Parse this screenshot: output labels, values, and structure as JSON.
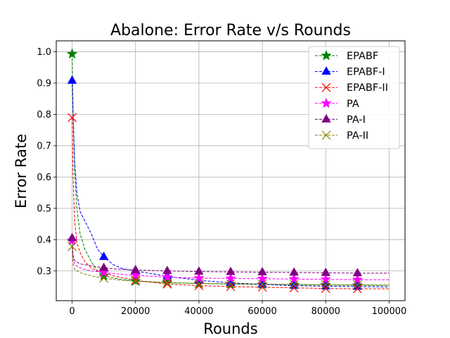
{
  "chart_data": {
    "type": "line",
    "title": "Abalone: Error Rate v/s Rounds",
    "xlabel": "Rounds",
    "ylabel": "Error Rate",
    "xlim": [
      -5000,
      105000
    ],
    "ylim": [
      0.205,
      1.035
    ],
    "xticks": [
      0,
      20000,
      40000,
      60000,
      80000,
      100000
    ],
    "xtick_labels": [
      "0",
      "20000",
      "40000",
      "60000",
      "80000",
      "100000"
    ],
    "yticks": [
      0.3,
      0.4,
      0.5,
      0.6,
      0.7,
      0.8,
      0.9,
      1.0
    ],
    "ytick_labels": [
      "0.3",
      "0.4",
      "0.5",
      "0.6",
      "0.7",
      "0.8",
      "0.9",
      "1.0"
    ],
    "grid": true,
    "legend_position": "top-right",
    "marker_rounds": [
      0,
      10000,
      20000,
      30000,
      40000,
      50000,
      60000,
      70000,
      80000,
      90000
    ],
    "series": [
      {
        "name": "EPABF",
        "color": "#008000",
        "marker": "star",
        "line_x": [
          0,
          300,
          800,
          1500,
          2500,
          4000,
          6000,
          8000,
          10000,
          13000,
          16000,
          20000,
          30000,
          40000,
          50000,
          60000,
          70000,
          80000,
          90000,
          100000
        ],
        "line_y": [
          0.993,
          0.82,
          0.62,
          0.5,
          0.42,
          0.37,
          0.33,
          0.3,
          0.285,
          0.278,
          0.272,
          0.268,
          0.263,
          0.26,
          0.258,
          0.257,
          0.256,
          0.255,
          0.254,
          0.254
        ],
        "marker_y": [
          0.993,
          0.285,
          0.268,
          0.263,
          0.26,
          0.258,
          0.257,
          0.256,
          0.255,
          0.254
        ]
      },
      {
        "name": "EPABF-I",
        "color": "#0000ff",
        "marker": "triangle",
        "line_x": [
          0,
          300,
          800,
          1500,
          2500,
          4000,
          6000,
          8000,
          10000,
          13000,
          16000,
          20000,
          30000,
          40000,
          50000,
          60000,
          70000,
          80000,
          90000,
          100000
        ],
        "line_y": [
          0.908,
          0.8,
          0.65,
          0.55,
          0.49,
          0.46,
          0.42,
          0.37,
          0.345,
          0.32,
          0.307,
          0.3,
          0.283,
          0.27,
          0.262,
          0.257,
          0.253,
          0.251,
          0.25,
          0.249
        ],
        "marker_y": [
          0.908,
          0.345,
          0.3,
          0.283,
          0.27,
          0.262,
          0.257,
          0.253,
          0.251,
          0.25
        ]
      },
      {
        "name": "EPABF-II",
        "color": "#ff0000",
        "marker": "x",
        "line_x": [
          0,
          300,
          800,
          1500,
          2500,
          4000,
          6000,
          8000,
          10000,
          13000,
          16000,
          20000,
          30000,
          40000,
          50000,
          60000,
          70000,
          80000,
          90000,
          100000
        ],
        "line_y": [
          0.79,
          0.6,
          0.46,
          0.39,
          0.36,
          0.33,
          0.31,
          0.3,
          0.295,
          0.285,
          0.278,
          0.27,
          0.258,
          0.253,
          0.25,
          0.248,
          0.246,
          0.244,
          0.243,
          0.243
        ],
        "marker_y": [
          0.79,
          0.295,
          0.27,
          0.258,
          0.253,
          0.25,
          0.248,
          0.246,
          0.244,
          0.243
        ]
      },
      {
        "name": "PA",
        "color": "#ff00ff",
        "marker": "star",
        "line_x": [
          0,
          300,
          800,
          1500,
          2500,
          4000,
          6000,
          8000,
          10000,
          13000,
          16000,
          20000,
          30000,
          40000,
          50000,
          60000,
          70000,
          80000,
          90000,
          100000
        ],
        "line_y": [
          0.397,
          0.34,
          0.32,
          0.315,
          0.31,
          0.305,
          0.3,
          0.298,
          0.295,
          0.292,
          0.289,
          0.286,
          0.28,
          0.277,
          0.276,
          0.275,
          0.274,
          0.273,
          0.272,
          0.272
        ],
        "marker_y": [
          0.397,
          0.295,
          0.286,
          0.28,
          0.277,
          0.276,
          0.275,
          0.274,
          0.273,
          0.272
        ]
      },
      {
        "name": "PA-I",
        "color": "#800080",
        "marker": "triangle",
        "line_x": [
          0,
          300,
          800,
          1500,
          2500,
          4000,
          6000,
          8000,
          10000,
          13000,
          16000,
          20000,
          30000,
          40000,
          50000,
          60000,
          70000,
          80000,
          90000,
          100000
        ],
        "line_y": [
          0.405,
          0.35,
          0.333,
          0.328,
          0.323,
          0.32,
          0.317,
          0.313,
          0.31,
          0.307,
          0.305,
          0.303,
          0.3,
          0.298,
          0.297,
          0.296,
          0.295,
          0.294,
          0.293,
          0.293
        ],
        "marker_y": [
          0.405,
          0.31,
          0.303,
          0.3,
          0.298,
          0.297,
          0.296,
          0.295,
          0.294,
          0.293
        ]
      },
      {
        "name": "PA-II",
        "color": "#808000",
        "marker": "x",
        "line_x": [
          0,
          300,
          800,
          1500,
          2500,
          4000,
          6000,
          8000,
          10000,
          13000,
          16000,
          20000,
          30000,
          40000,
          50000,
          60000,
          70000,
          80000,
          90000,
          100000
        ],
        "line_y": [
          0.378,
          0.32,
          0.305,
          0.3,
          0.295,
          0.29,
          0.285,
          0.28,
          0.277,
          0.273,
          0.27,
          0.267,
          0.262,
          0.26,
          0.259,
          0.258,
          0.257,
          0.256,
          0.256,
          0.255
        ],
        "marker_y": [
          0.378,
          0.277,
          0.267,
          0.262,
          0.26,
          0.259,
          0.258,
          0.257,
          0.256,
          0.256
        ]
      }
    ]
  }
}
